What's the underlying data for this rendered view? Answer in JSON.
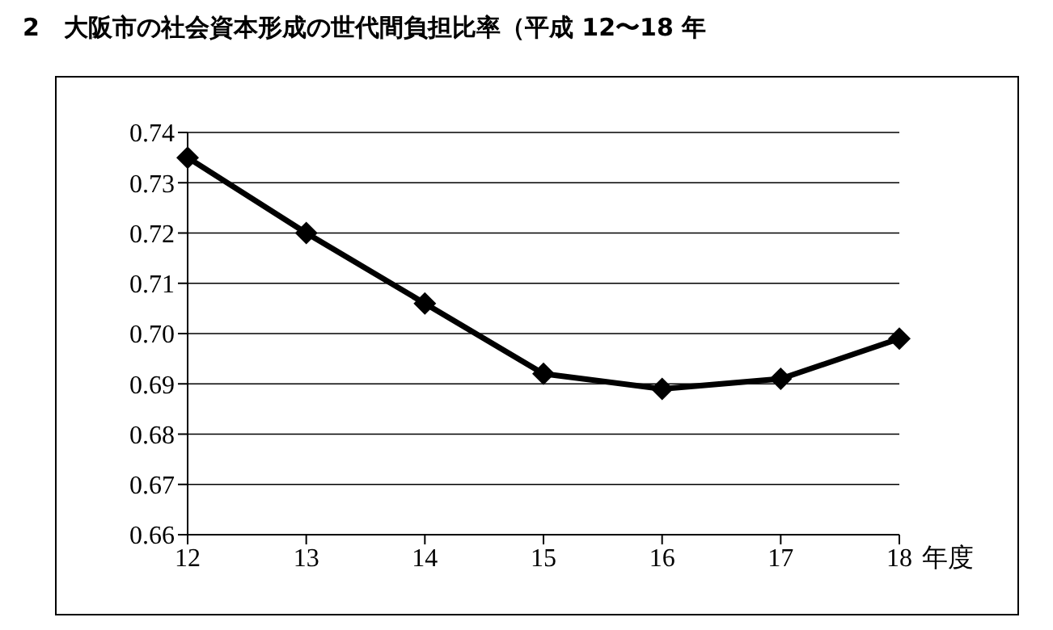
{
  "chart_data": {
    "type": "line",
    "title": "2　大阪市の社会資本形成の世代間負担比率（平成 12〜18 年",
    "xlabel": "年度",
    "categories": [
      "12",
      "13",
      "14",
      "15",
      "16",
      "17",
      "18"
    ],
    "series": [
      {
        "color": "#000000",
        "values": [
          0.735,
          0.72,
          0.706,
          0.692,
          0.689,
          0.691,
          0.699
        ]
      }
    ],
    "ylim": [
      0.66,
      0.74
    ],
    "yticks": [
      0.66,
      0.67,
      0.68,
      0.69,
      {
        "value": 0.7,
        "label": "0.70"
      },
      0.71,
      0.72,
      0.73,
      0.74
    ],
    "grid": "y",
    "marker": "diamond",
    "line_style": "solid",
    "legend": false
  }
}
